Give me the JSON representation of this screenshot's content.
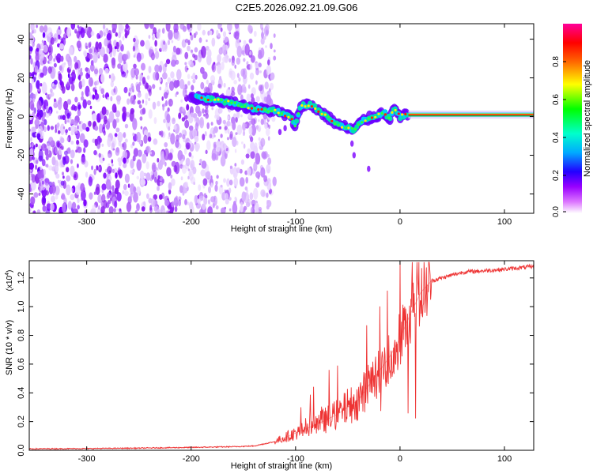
{
  "title": "C2E5.2026.092.21.09.G06",
  "chart_data": [
    {
      "type": "heatmap",
      "xlabel": "Height of straight line (km)",
      "ylabel": "Frequency (Hz)",
      "xlim": [
        -355,
        128
      ],
      "ylim": [
        -50,
        48
      ],
      "xticks": [
        -300,
        -200,
        -100,
        0,
        100
      ],
      "yticks": [
        -40,
        -20,
        0,
        20,
        40
      ],
      "colorbar": {
        "label": "Normalized spectral amplitude",
        "range": [
          0,
          1
        ],
        "ticks": [
          "0.0",
          "0.2",
          "0.4",
          "0.6",
          "0.8"
        ],
        "colors": [
          "#ffffff",
          "#cc33ff",
          "#3300ff",
          "#00ccff",
          "#00ff00",
          "#ffff00",
          "#ff6600",
          "#ff0000",
          "#ff0099"
        ]
      },
      "noise_region_x": [
        -355,
        -140
      ],
      "ridge": {
        "x": [
          -200,
          -180,
          -160,
          -140,
          -120,
          -105,
          -100,
          -95,
          -85,
          -75,
          -60,
          -45,
          -35,
          -25,
          -15,
          -10,
          -5,
          0,
          5,
          10,
          128
        ],
        "y": [
          10,
          9,
          7,
          4,
          3,
          0,
          -5,
          6,
          6,
          2,
          -4,
          -7,
          -2,
          0,
          2,
          -1,
          4,
          0,
          1,
          1,
          1
        ]
      }
    },
    {
      "type": "line",
      "xlabel": "Height of straight line (km)",
      "ylabel": "SNR (10 * v/v)",
      "multiplier": "(x10",
      "multiplier_exp": "4",
      "multiplier_close": ")",
      "xlim": [
        -355,
        128
      ],
      "ylim": [
        0,
        1.32
      ],
      "xticks": [
        -300,
        -200,
        -100,
        0,
        100
      ],
      "yticks": [
        "0.0",
        "0.2",
        "0.4",
        "0.6",
        "0.8",
        "1.0",
        "1.2"
      ],
      "color": "#ee3333",
      "series": [
        {
          "name": "SNR",
          "x": [
            -355,
            -300,
            -250,
            -200,
            -160,
            -140,
            -120,
            -100,
            -80,
            -60,
            -40,
            -30,
            -20,
            -10,
            0,
            10,
            20,
            30,
            40,
            60,
            80,
            100,
            128
          ],
          "y": [
            0.01,
            0.012,
            0.015,
            0.02,
            0.025,
            0.03,
            0.06,
            0.12,
            0.18,
            0.25,
            0.35,
            0.45,
            0.55,
            0.65,
            0.78,
            0.95,
            1.1,
            1.18,
            1.2,
            1.24,
            1.25,
            1.26,
            1.28
          ]
        }
      ]
    }
  ]
}
